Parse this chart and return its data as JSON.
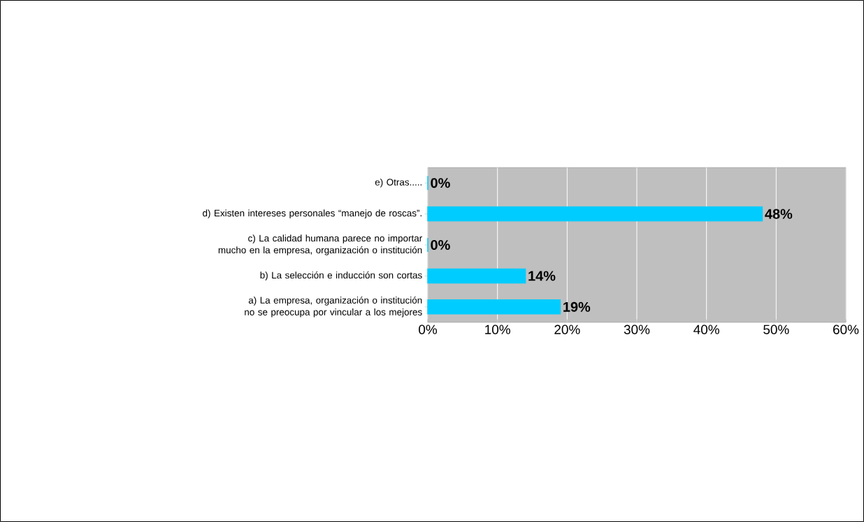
{
  "chart_data": {
    "type": "bar",
    "orientation": "horizontal",
    "categories": [
      "e) Otras.....",
      "d) Existen intereses personales “manejo de roscas”.",
      "c) La calidad humana parece no importar mucho en la empresa, organización o institución",
      "b) La selección e inducción son cortas",
      "a) La empresa, organización o institución no se preocupa por vincular a los mejores"
    ],
    "values": [
      0,
      48,
      0,
      14,
      19
    ],
    "value_labels": [
      "0%",
      "48%",
      "0%",
      "14%",
      "19%"
    ],
    "color": "#00ccff",
    "xlim": [
      0,
      60
    ],
    "xticks": [
      {
        "value": 0,
        "label": "0%"
      },
      {
        "value": 10,
        "label": "10%"
      },
      {
        "value": 20,
        "label": "20%"
      },
      {
        "value": 30,
        "label": "30%"
      },
      {
        "value": 40,
        "label": "40%"
      },
      {
        "value": 50,
        "label": "50%"
      },
      {
        "value": 60,
        "label": "60%"
      }
    ],
    "grid": "x"
  }
}
